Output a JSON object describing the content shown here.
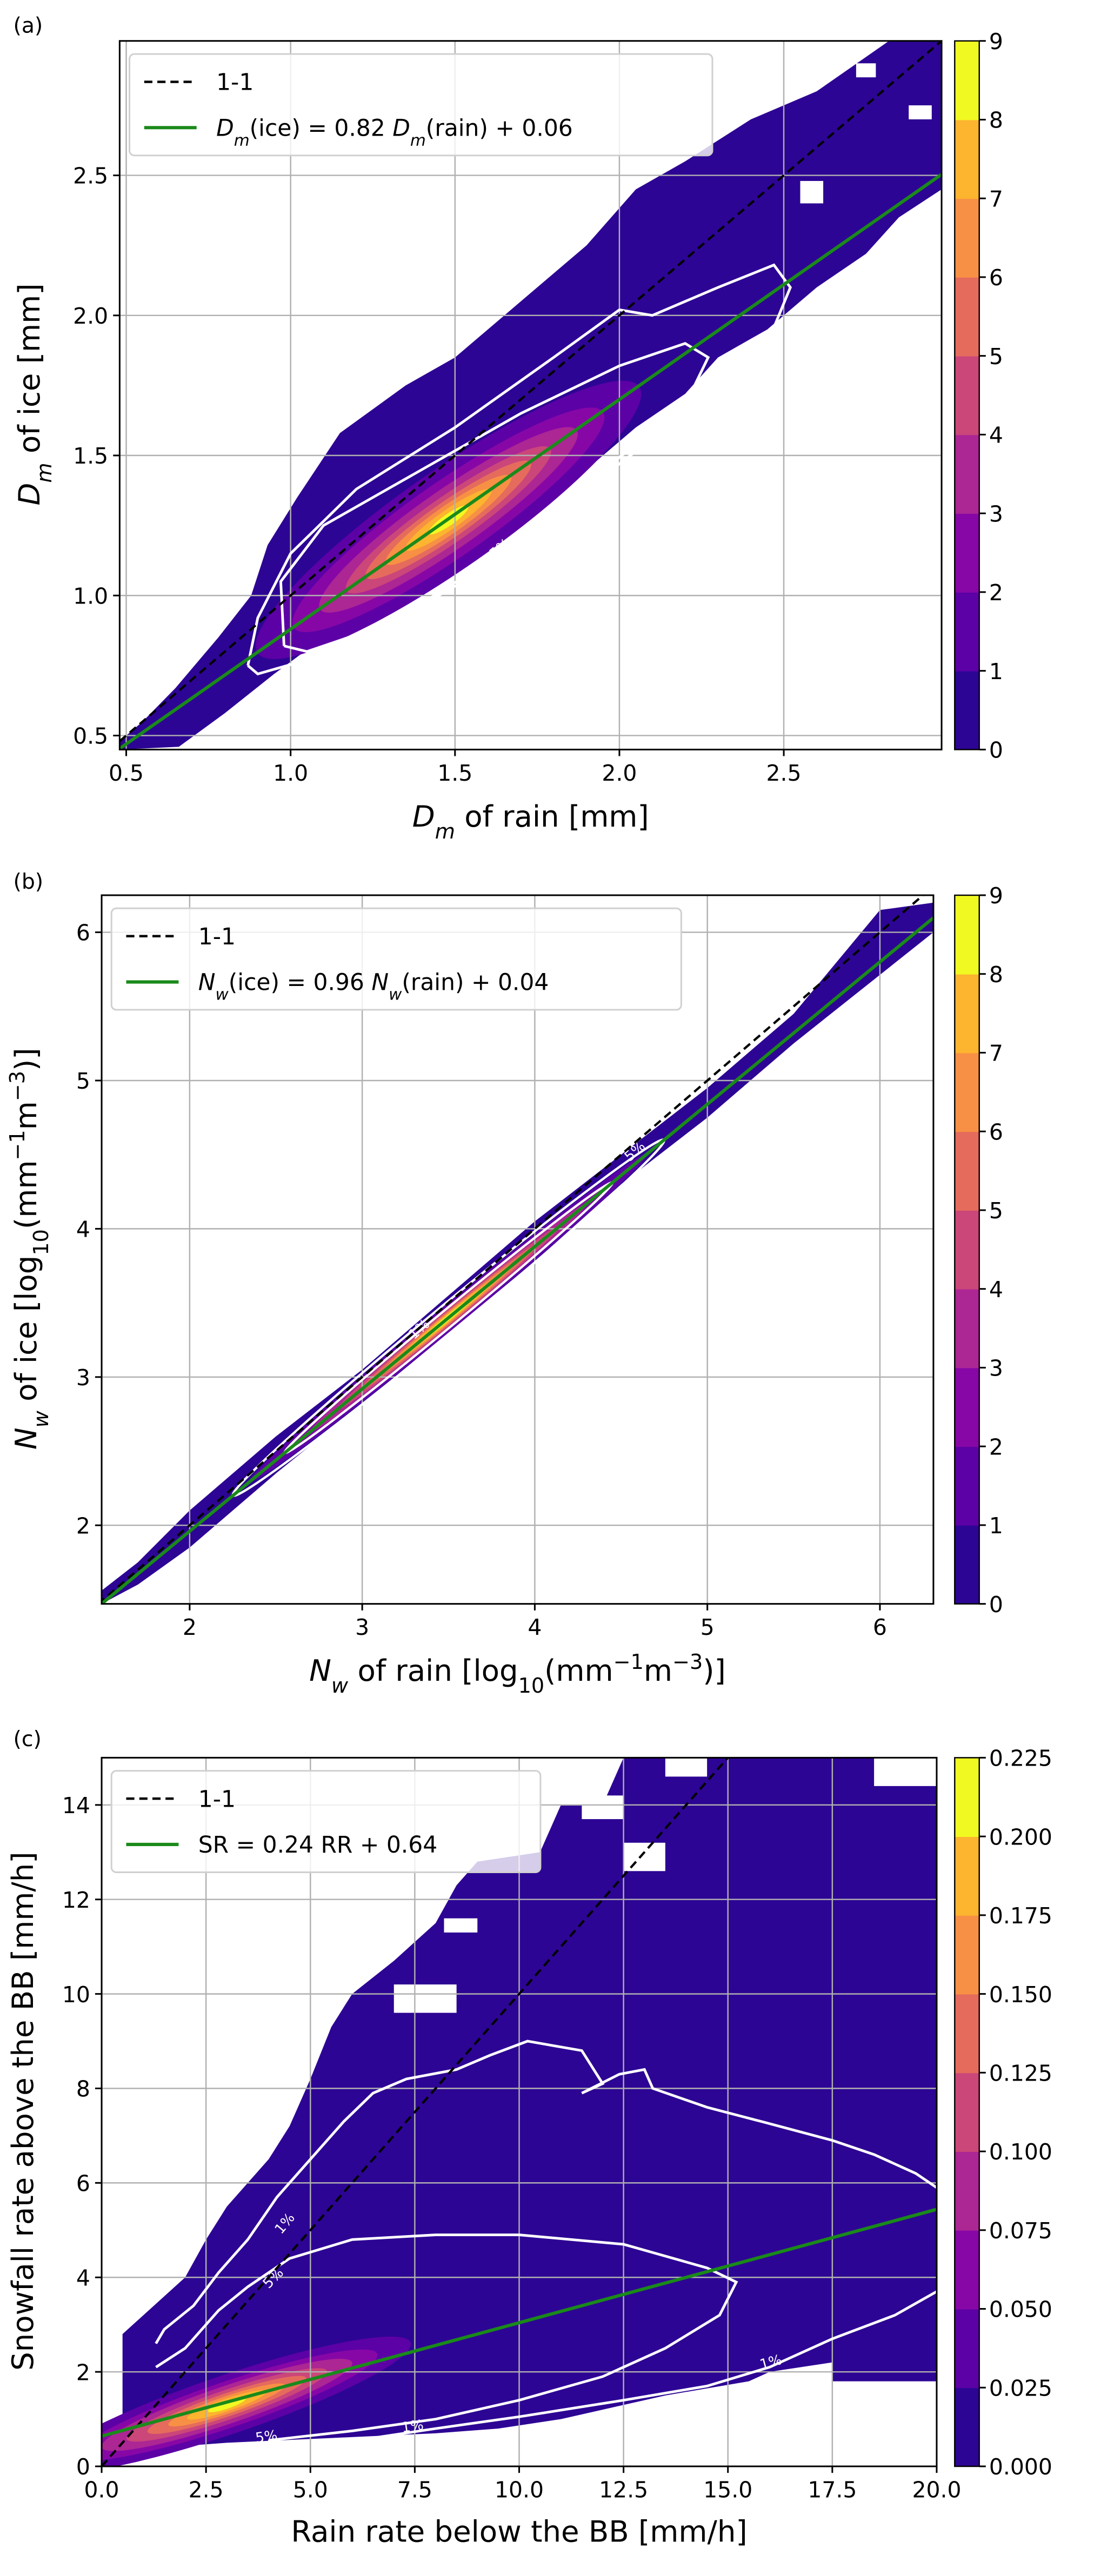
{
  "colormap_levels_colors": [
    "#2d0594",
    "#5c01a6",
    "#8707a6",
    "#ac2694",
    "#cb4679",
    "#e56b5d",
    "#f79044",
    "#fdb42f",
    "#f0f921"
  ],
  "fit_line_color": "#1a8a1a",
  "chart_data": [
    {
      "panel_label": "(a)",
      "type": "heatmap",
      "xlabel": [
        {
          "t": "D",
          "s": "i"
        },
        {
          "t": "m",
          "s": "isub"
        },
        {
          "t": " of rain [mm]",
          "s": "n"
        }
      ],
      "ylabel": [
        {
          "t": "D",
          "s": "i"
        },
        {
          "t": "m",
          "s": "isub"
        },
        {
          "t": " of ice [mm]",
          "s": "n"
        }
      ],
      "xlim": [
        0.48,
        2.98
      ],
      "ylim": [
        0.45,
        2.98
      ],
      "xticks": [
        "0.5",
        "1.0",
        "1.5",
        "2.0",
        "2.5"
      ],
      "yticks": [
        "0.5",
        "1.0",
        "1.5",
        "2.0",
        "2.5"
      ],
      "grid": true,
      "legend_placement": "upper-left",
      "legend": [
        {
          "style": "dashed-black",
          "label": [
            {
              "t": "1-1",
              "s": "n"
            }
          ]
        },
        {
          "style": "solid-green",
          "label": [
            {
              "t": "D",
              "s": "i"
            },
            {
              "t": "m",
              "s": "isub"
            },
            {
              "t": "(ice) = 0.82 ",
              "s": "n"
            },
            {
              "t": "D",
              "s": "i"
            },
            {
              "t": "m",
              "s": "isub"
            },
            {
              "t": "(rain) + 0.06",
              "s": "n"
            }
          ]
        }
      ],
      "one_to_one_line": true,
      "fit": {
        "slope": 0.82,
        "intercept": 0.06
      },
      "density_peak": [
        1.45,
        1.25
      ],
      "contour_labels": [
        "5%",
        "1%"
      ],
      "colorbar": {
        "ticks": [
          "0",
          "1",
          "2",
          "3",
          "4",
          "5",
          "6",
          "7",
          "8",
          "9"
        ],
        "range": [
          0,
          9
        ]
      }
    },
    {
      "panel_label": "(b)",
      "type": "heatmap",
      "xlabel": [
        {
          "t": "N",
          "s": "i"
        },
        {
          "t": "w",
          "s": "isub"
        },
        {
          "t": " of rain [log",
          "s": "n"
        },
        {
          "t": "10",
          "s": "sub"
        },
        {
          "t": "(mm",
          "s": "n"
        },
        {
          "t": "−1",
          "s": "sup"
        },
        {
          "t": "m",
          "s": "n"
        },
        {
          "t": "−3",
          "s": "sup"
        },
        {
          "t": ")]",
          "s": "n"
        }
      ],
      "ylabel": [
        {
          "t": "N",
          "s": "i"
        },
        {
          "t": "w",
          "s": "isub"
        },
        {
          "t": " of ice [log",
          "s": "n"
        },
        {
          "t": "10",
          "s": "sub"
        },
        {
          "t": "(mm",
          "s": "n"
        },
        {
          "t": "−1",
          "s": "sup"
        },
        {
          "t": "m",
          "s": "n"
        },
        {
          "t": "−3",
          "s": "sup"
        },
        {
          "t": ")]",
          "s": "n"
        }
      ],
      "xlim": [
        1.49,
        6.31
      ],
      "ylim": [
        1.47,
        6.25
      ],
      "xticks": [
        "2",
        "3",
        "4",
        "5",
        "6"
      ],
      "yticks": [
        "2",
        "3",
        "4",
        "5",
        "6"
      ],
      "grid": true,
      "legend_placement": "upper-left",
      "legend": [
        {
          "style": "dashed-black",
          "label": [
            {
              "t": "1-1",
              "s": "n"
            }
          ]
        },
        {
          "style": "solid-green",
          "label": [
            {
              "t": "N",
              "s": "i"
            },
            {
              "t": "w",
              "s": "isub"
            },
            {
              "t": "(ice) = 0.96 ",
              "s": "n"
            },
            {
              "t": "N",
              "s": "i"
            },
            {
              "t": "w",
              "s": "isub"
            },
            {
              "t": "(rain) + 0.04",
              "s": "n"
            }
          ]
        }
      ],
      "one_to_one_line": true,
      "fit": {
        "slope": 0.96,
        "intercept": 0.04
      },
      "density_peak": [
        3.5,
        3.4
      ],
      "contour_labels": [
        "1%",
        "5%"
      ],
      "colorbar": {
        "ticks": [
          "0",
          "1",
          "2",
          "3",
          "4",
          "5",
          "6",
          "7",
          "8",
          "9"
        ],
        "range": [
          0,
          9
        ]
      }
    },
    {
      "panel_label": "(c)",
      "type": "heatmap",
      "xlabel": [
        {
          "t": "Rain rate below the BB [mm/h]",
          "s": "n"
        }
      ],
      "ylabel": [
        {
          "t": "Snowfall rate above the BB [mm/h]",
          "s": "n"
        }
      ],
      "xlim": [
        0,
        20
      ],
      "ylim": [
        0,
        15
      ],
      "xticks": [
        "0.0",
        "2.5",
        "5.0",
        "7.5",
        "10.0",
        "12.5",
        "15.0",
        "17.5",
        "20.0"
      ],
      "yticks": [
        "0",
        "2",
        "4",
        "6",
        "8",
        "10",
        "12",
        "14"
      ],
      "grid": true,
      "legend_placement": "upper-left",
      "legend": [
        {
          "style": "dashed-black",
          "label": [
            {
              "t": "1-1",
              "s": "n"
            }
          ]
        },
        {
          "style": "solid-green",
          "label": [
            {
              "t": "SR = 0.24 RR + 0.64",
              "s": "n"
            }
          ]
        }
      ],
      "one_to_one_line": true,
      "fit": {
        "slope": 0.24,
        "intercept": 0.64
      },
      "density_peak": [
        3.0,
        1.3
      ],
      "contour_labels": [
        "1%",
        "5%",
        "1%",
        "5%",
        "1%"
      ],
      "colorbar": {
        "ticks": [
          "0.000",
          "0.025",
          "0.050",
          "0.075",
          "0.100",
          "0.125",
          "0.150",
          "0.175",
          "0.200",
          "0.225"
        ],
        "range": [
          0,
          0.225
        ]
      }
    }
  ]
}
